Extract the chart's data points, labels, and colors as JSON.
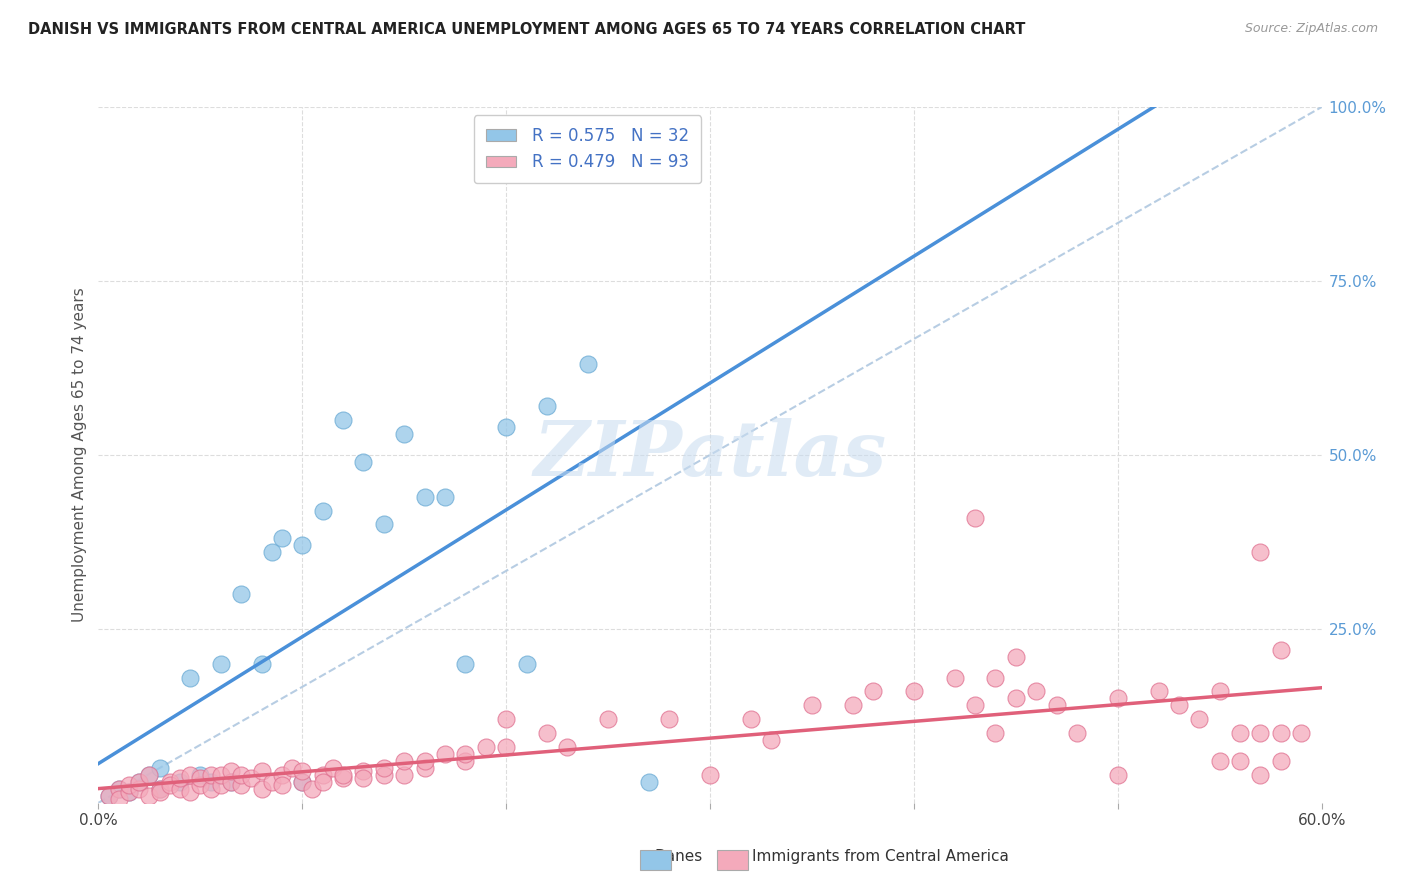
{
  "title": "DANISH VS IMMIGRANTS FROM CENTRAL AMERICA UNEMPLOYMENT AMONG AGES 65 TO 74 YEARS CORRELATION CHART",
  "source": "Source: ZipAtlas.com",
  "ylabel": "Unemployment Among Ages 65 to 74 years",
  "xlim": [
    0.0,
    0.6
  ],
  "ylim": [
    0.0,
    1.0
  ],
  "danes_color": "#93C6E8",
  "danes_edge_color": "#6AAAD4",
  "immigrants_color": "#F4AABB",
  "immigrants_edge_color": "#E07090",
  "danes_line_color": "#4A90D9",
  "immigrants_line_color": "#E0607A",
  "ref_line_color": "#B0C8E0",
  "danes_R": 0.575,
  "danes_N": 32,
  "immigrants_R": 0.479,
  "immigrants_N": 93,
  "danes_x": [
    0.005,
    0.01,
    0.015,
    0.02,
    0.025,
    0.03,
    0.03,
    0.04,
    0.045,
    0.05,
    0.055,
    0.06,
    0.065,
    0.07,
    0.08,
    0.085,
    0.09,
    0.1,
    0.1,
    0.11,
    0.12,
    0.13,
    0.14,
    0.15,
    0.16,
    0.17,
    0.18,
    0.2,
    0.21,
    0.22,
    0.24,
    0.27
  ],
  "danes_y": [
    0.01,
    0.02,
    0.015,
    0.03,
    0.04,
    0.02,
    0.05,
    0.03,
    0.18,
    0.04,
    0.03,
    0.2,
    0.03,
    0.3,
    0.2,
    0.36,
    0.38,
    0.03,
    0.37,
    0.42,
    0.55,
    0.49,
    0.4,
    0.53,
    0.44,
    0.44,
    0.2,
    0.54,
    0.2,
    0.57,
    0.63,
    0.03
  ],
  "immig_x": [
    0.005,
    0.01,
    0.01,
    0.015,
    0.015,
    0.02,
    0.02,
    0.025,
    0.025,
    0.03,
    0.03,
    0.035,
    0.035,
    0.04,
    0.04,
    0.045,
    0.045,
    0.05,
    0.05,
    0.055,
    0.055,
    0.06,
    0.06,
    0.065,
    0.065,
    0.07,
    0.07,
    0.075,
    0.08,
    0.08,
    0.085,
    0.09,
    0.09,
    0.095,
    0.1,
    0.1,
    0.105,
    0.11,
    0.11,
    0.115,
    0.12,
    0.12,
    0.13,
    0.13,
    0.14,
    0.14,
    0.15,
    0.15,
    0.16,
    0.16,
    0.17,
    0.18,
    0.18,
    0.19,
    0.2,
    0.2,
    0.22,
    0.23,
    0.25,
    0.28,
    0.3,
    0.32,
    0.33,
    0.35,
    0.37,
    0.38,
    0.4,
    0.42,
    0.43,
    0.44,
    0.44,
    0.45,
    0.46,
    0.47,
    0.48,
    0.5,
    0.5,
    0.52,
    0.53,
    0.54,
    0.55,
    0.55,
    0.56,
    0.56,
    0.57,
    0.57,
    0.58,
    0.58,
    0.59,
    0.43,
    0.45,
    0.57,
    0.58
  ],
  "immig_y": [
    0.01,
    0.02,
    0.005,
    0.015,
    0.025,
    0.02,
    0.03,
    0.01,
    0.04,
    0.02,
    0.015,
    0.03,
    0.025,
    0.02,
    0.035,
    0.015,
    0.04,
    0.025,
    0.035,
    0.02,
    0.04,
    0.025,
    0.04,
    0.03,
    0.045,
    0.025,
    0.04,
    0.035,
    0.02,
    0.045,
    0.03,
    0.04,
    0.025,
    0.05,
    0.03,
    0.045,
    0.02,
    0.04,
    0.03,
    0.05,
    0.035,
    0.04,
    0.045,
    0.035,
    0.04,
    0.05,
    0.04,
    0.06,
    0.05,
    0.06,
    0.07,
    0.06,
    0.07,
    0.08,
    0.08,
    0.12,
    0.1,
    0.08,
    0.12,
    0.12,
    0.04,
    0.12,
    0.09,
    0.14,
    0.14,
    0.16,
    0.16,
    0.18,
    0.14,
    0.18,
    0.1,
    0.15,
    0.16,
    0.14,
    0.1,
    0.15,
    0.04,
    0.16,
    0.14,
    0.12,
    0.16,
    0.06,
    0.1,
    0.06,
    0.1,
    0.04,
    0.1,
    0.06,
    0.1,
    0.41,
    0.21,
    0.36,
    0.22
  ],
  "watermark": "ZIPatlas",
  "background_color": "#FFFFFF",
  "grid_color": "#DDDDDD",
  "legend_text_color": "#4472C4",
  "right_tick_color": "#5B9BD5"
}
